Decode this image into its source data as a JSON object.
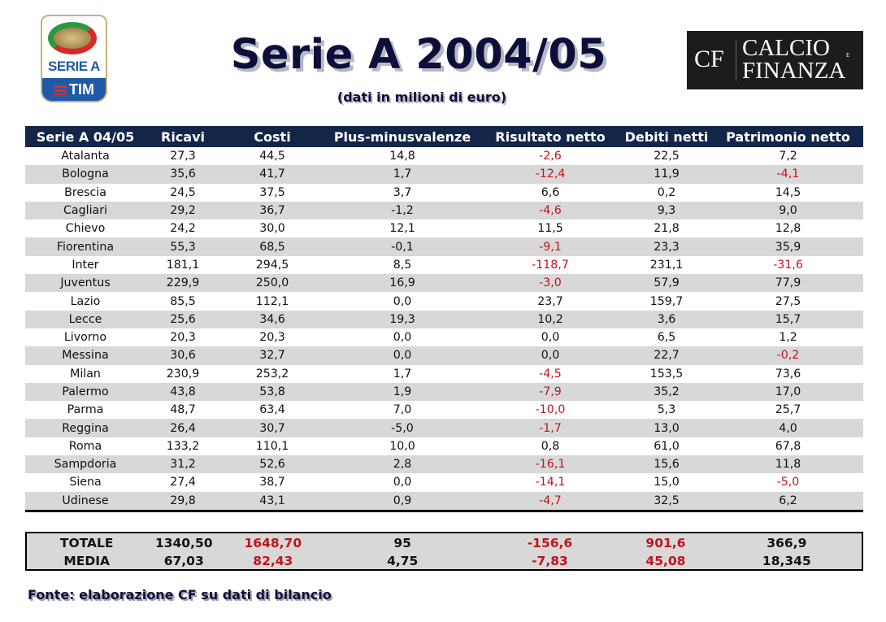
{
  "header": {
    "title": "Serie A 2004/05",
    "subtitle": "(dati in milioni di euro)",
    "league_logo": {
      "word": "SERIE A",
      "sponsor": "TIM"
    },
    "publisher_logo": {
      "abbr": "CF",
      "line1": "CALCIO",
      "line2": "FINANZA",
      "small_e": "E"
    }
  },
  "table": {
    "columns": [
      "Serie A 04/05",
      "Ricavi",
      "Costi",
      "Plus-minusvalenze",
      "Risultato netto",
      "Debiti netti",
      "Patrimonio netto"
    ],
    "rows": [
      {
        "team": "Atalanta",
        "ricavi": "27,3",
        "costi": "44,5",
        "plusminus": "14,8",
        "risultato": "-2,6",
        "debiti": "22,5",
        "patrimonio": "7,2"
      },
      {
        "team": "Bologna",
        "ricavi": "35,6",
        "costi": "41,7",
        "plusminus": "1,7",
        "risultato": "-12,4",
        "debiti": "11,9",
        "patrimonio": "-4,1"
      },
      {
        "team": "Brescia",
        "ricavi": "24,5",
        "costi": "37,5",
        "plusminus": "3,7",
        "risultato": "6,6",
        "debiti": "0,2",
        "patrimonio": "14,5"
      },
      {
        "team": "Cagliari",
        "ricavi": "29,2",
        "costi": "36,7",
        "plusminus": "-1,2",
        "risultato": "-4,6",
        "debiti": "9,3",
        "patrimonio": "9,0"
      },
      {
        "team": "Chievo",
        "ricavi": "24,2",
        "costi": "30,0",
        "plusminus": "12,1",
        "risultato": "11,5",
        "debiti": "21,8",
        "patrimonio": "12,8"
      },
      {
        "team": "Fiorentina",
        "ricavi": "55,3",
        "costi": "68,5",
        "plusminus": "-0,1",
        "risultato": "-9,1",
        "debiti": "23,3",
        "patrimonio": "35,9"
      },
      {
        "team": "Inter",
        "ricavi": "181,1",
        "costi": "294,5",
        "plusminus": "8,5",
        "risultato": "-118,7",
        "debiti": "231,1",
        "patrimonio": "-31,6"
      },
      {
        "team": "Juventus",
        "ricavi": "229,9",
        "costi": "250,0",
        "plusminus": "16,9",
        "risultato": "-3,0",
        "debiti": "57,9",
        "patrimonio": "77,9"
      },
      {
        "team": "Lazio",
        "ricavi": "85,5",
        "costi": "112,1",
        "plusminus": "0,0",
        "risultato": "23,7",
        "debiti": "159,7",
        "patrimonio": "27,5"
      },
      {
        "team": "Lecce",
        "ricavi": "25,6",
        "costi": "34,6",
        "plusminus": "19,3",
        "risultato": "10,2",
        "debiti": "3,6",
        "patrimonio": "15,7"
      },
      {
        "team": "Livorno",
        "ricavi": "20,3",
        "costi": "20,3",
        "plusminus": "0,0",
        "risultato": "0,0",
        "debiti": "6,5",
        "patrimonio": "1,2"
      },
      {
        "team": "Messina",
        "ricavi": "30,6",
        "costi": "32,7",
        "plusminus": "0,0",
        "risultato": "0,0",
        "debiti": "22,7",
        "patrimonio": "-0,2"
      },
      {
        "team": "Milan",
        "ricavi": "230,9",
        "costi": "253,2",
        "plusminus": "1,7",
        "risultato": "-4,5",
        "debiti": "153,5",
        "patrimonio": "73,6"
      },
      {
        "team": "Palermo",
        "ricavi": "43,8",
        "costi": "53,8",
        "plusminus": "1,9",
        "risultato": "-7,9",
        "debiti": "35,2",
        "patrimonio": "17,0"
      },
      {
        "team": "Parma",
        "ricavi": "48,7",
        "costi": "63,4",
        "plusminus": "7,0",
        "risultato": "-10,0",
        "debiti": "5,3",
        "patrimonio": "25,7"
      },
      {
        "team": "Reggina",
        "ricavi": "26,4",
        "costi": "30,7",
        "plusminus": "-5,0",
        "risultato": "-1,7",
        "debiti": "13,0",
        "patrimonio": "4,0"
      },
      {
        "team": "Roma",
        "ricavi": "133,2",
        "costi": "110,1",
        "plusminus": "10,0",
        "risultato": "0,8",
        "debiti": "61,0",
        "patrimonio": "67,8"
      },
      {
        "team": "Sampdoria",
        "ricavi": "31,2",
        "costi": "52,6",
        "plusminus": "2,8",
        "risultato": "-16,1",
        "debiti": "15,6",
        "patrimonio": "11,8"
      },
      {
        "team": "Siena",
        "ricavi": "27,4",
        "costi": "38,7",
        "plusminus": "0,0",
        "risultato": "-14,1",
        "debiti": "15,0",
        "patrimonio": "-5,0"
      },
      {
        "team": "Udinese",
        "ricavi": "29,8",
        "costi": "43,1",
        "plusminus": "0,9",
        "risultato": "-4,7",
        "debiti": "32,5",
        "patrimonio": "6,2"
      }
    ]
  },
  "summary": {
    "totale": {
      "label": "TOTALE",
      "ricavi": "1340,50",
      "costi": "1648,70",
      "plusminus": "95",
      "risultato": "-156,6",
      "debiti": "901,6",
      "patrimonio": "366,9"
    },
    "media": {
      "label": "MEDIA",
      "ricavi": "67,03",
      "costi": "82,43",
      "plusminus": "4,75",
      "risultato": "-7,83",
      "debiti": "45,08",
      "patrimonio": "18,345"
    }
  },
  "footer": {
    "source": "Fonte: elaborazione CF su dati di bilancio"
  },
  "colors": {
    "header_bg": "#13264a",
    "negative": "#c0141c",
    "alt_row": "#d8d8d8",
    "title": "#0c0f3a"
  }
}
